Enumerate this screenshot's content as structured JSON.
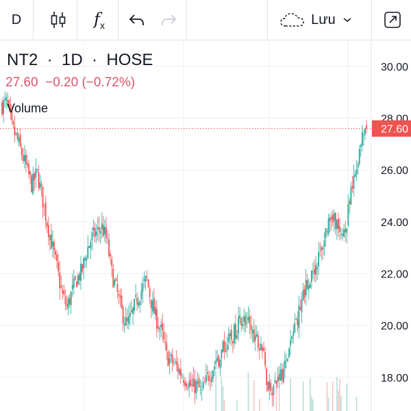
{
  "toolbar": {
    "interval": "D",
    "indicator_icon": "candlestick-icon",
    "fx_label": "f",
    "fx_sub": "x",
    "undo_icon": "undo-icon",
    "redo_icon": "redo-icon",
    "save_label": "Lưu",
    "save_icon": "cloud-icon",
    "fullscreen_icon": "expand-icon"
  },
  "legend": {
    "symbol": "NT2",
    "interval": "1D",
    "exchange": "HOSE",
    "last": "27.60",
    "change": "−0.20",
    "change_pct": "(−0.72%)",
    "volume_label": "Volume"
  },
  "colors": {
    "up": "#26a69a",
    "down": "#ef5350",
    "price_line": "#ef5350",
    "grid": "#eceff3"
  },
  "chart_data": {
    "type": "candlestick",
    "y_ticks": [
      "30.00",
      "28.00",
      "26.00",
      "24.00",
      "22.00",
      "20.00",
      "18.00"
    ],
    "y_tick_values": [
      30,
      28,
      26,
      24,
      22,
      20,
      18
    ],
    "ylim": [
      16.7,
      31.0
    ],
    "last_price": 27.6,
    "last_price_label": "27.60",
    "close_path": [
      28.5,
      28.6,
      27.6,
      27.2,
      26.6,
      26.0,
      25.4,
      25.9,
      25.0,
      24.0,
      23.1,
      22.2,
      21.2,
      20.7,
      21.3,
      21.8,
      22.1,
      22.9,
      23.4,
      23.6,
      23.8,
      23.3,
      22.0,
      21.3,
      20.5,
      20.0,
      20.4,
      21.0,
      21.4,
      21.8,
      20.8,
      20.2,
      19.7,
      18.8,
      18.6,
      18.4,
      18.1,
      17.9,
      17.6,
      17.7,
      17.4,
      17.9,
      18.3,
      18.6,
      19.0,
      19.3,
      19.5,
      19.9,
      20.3,
      20.1,
      19.8,
      19.5,
      19.3,
      17.9,
      17.6,
      17.8,
      18.2,
      18.6,
      19.5,
      20.2,
      20.9,
      21.5,
      22.0,
      22.4,
      22.9,
      23.8,
      24.4,
      24.0,
      23.2,
      24.0,
      25.1,
      26.1,
      27.1,
      27.6
    ]
  }
}
